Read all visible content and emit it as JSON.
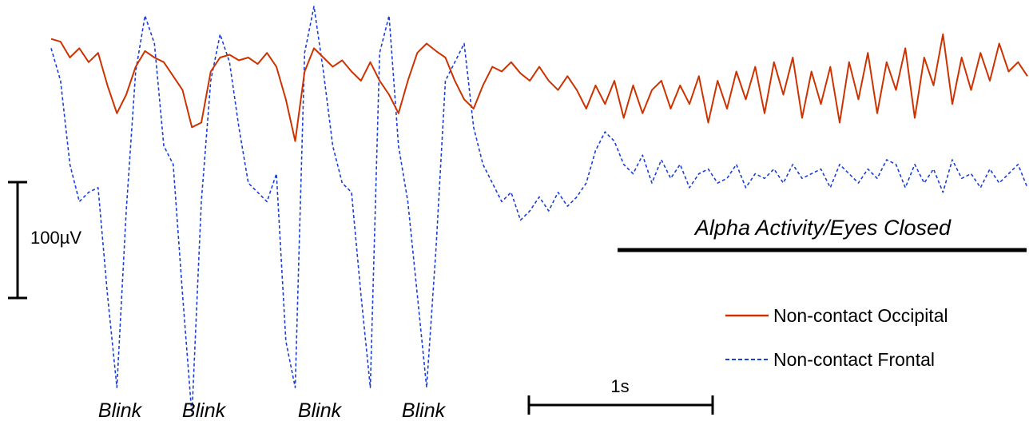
{
  "chart_data": {
    "type": "line",
    "title": "",
    "xlabel": "",
    "ylabel": "",
    "x_unit": "s",
    "y_unit": "µV",
    "xlim": [
      0,
      5.2
    ],
    "ylim": [
      -330,
      110
    ],
    "grid": false,
    "legend_position": "right",
    "scale_bars": {
      "voltage": {
        "label": "100µV",
        "value": 100
      },
      "time": {
        "label": "1s",
        "value": 1
      }
    },
    "annotations": {
      "blinks": [
        {
          "label": "Blink",
          "t": 0.35
        },
        {
          "label": "Blink",
          "t": 0.78
        },
        {
          "label": "Blink",
          "t": 1.38
        },
        {
          "label": "Blink",
          "t": 1.9
        }
      ],
      "alpha": {
        "label": "Alpha Activity/Eyes Closed",
        "t_start": 3.1,
        "t_end": 5.2
      }
    },
    "series": [
      {
        "name": "Non-contact Occipital",
        "color": "#cc3300",
        "style": "solid",
        "t": [
          0.0,
          0.05,
          0.1,
          0.15,
          0.2,
          0.25,
          0.3,
          0.35,
          0.4,
          0.45,
          0.5,
          0.55,
          0.6,
          0.65,
          0.7,
          0.75,
          0.8,
          0.85,
          0.9,
          0.95,
          1.0,
          1.05,
          1.1,
          1.15,
          1.2,
          1.25,
          1.3,
          1.35,
          1.4,
          1.45,
          1.5,
          1.55,
          1.6,
          1.65,
          1.7,
          1.75,
          1.8,
          1.85,
          1.9,
          1.95,
          2.0,
          2.05,
          2.1,
          2.15,
          2.2,
          2.25,
          2.3,
          2.35,
          2.4,
          2.45,
          2.5,
          2.55,
          2.6,
          2.65,
          2.7,
          2.75,
          2.8,
          2.85,
          2.9,
          2.95,
          3.0,
          3.05,
          3.1,
          3.15,
          3.2,
          3.25,
          3.3,
          3.35,
          3.4,
          3.45,
          3.5,
          3.55,
          3.6,
          3.65,
          3.7,
          3.75,
          3.8,
          3.85,
          3.9,
          3.95,
          4.0,
          4.05,
          4.1,
          4.15,
          4.2,
          4.25,
          4.3,
          4.35,
          4.4,
          4.45,
          4.5,
          4.55,
          4.6,
          4.65,
          4.7,
          4.75,
          4.8,
          4.85,
          4.9,
          4.95,
          5.0,
          5.05,
          5.1,
          5.15,
          5.2
        ],
        "v": [
          75,
          72,
          55,
          65,
          50,
          60,
          25,
          -5,
          15,
          45,
          62,
          55,
          50,
          35,
          20,
          -20,
          -15,
          40,
          55,
          58,
          52,
          55,
          48,
          60,
          45,
          10,
          -35,
          40,
          65,
          55,
          45,
          52,
          40,
          30,
          50,
          30,
          15,
          -5,
          30,
          60,
          70,
          62,
          55,
          30,
          10,
          0,
          25,
          45,
          40,
          50,
          38,
          30,
          45,
          30,
          20,
          35,
          20,
          0,
          25,
          5,
          30,
          -10,
          25,
          -5,
          20,
          30,
          0,
          25,
          5,
          35,
          -15,
          30,
          0,
          40,
          10,
          45,
          -5,
          50,
          15,
          55,
          -10,
          40,
          5,
          45,
          -15,
          50,
          10,
          60,
          -5,
          50,
          20,
          65,
          -10,
          55,
          25,
          80,
          5,
          55,
          20,
          60,
          30,
          70,
          40,
          50,
          35
        ]
      },
      {
        "name": "Non-contact Frontal",
        "color": "#1a3fd6",
        "style": "dashed",
        "t": [
          0.0,
          0.05,
          0.1,
          0.15,
          0.2,
          0.25,
          0.3,
          0.35,
          0.4,
          0.45,
          0.5,
          0.55,
          0.6,
          0.65,
          0.7,
          0.75,
          0.8,
          0.85,
          0.9,
          0.95,
          1.0,
          1.05,
          1.1,
          1.15,
          1.2,
          1.25,
          1.3,
          1.35,
          1.4,
          1.45,
          1.5,
          1.55,
          1.6,
          1.65,
          1.7,
          1.75,
          1.8,
          1.85,
          1.9,
          1.95,
          2.0,
          2.05,
          2.1,
          2.15,
          2.2,
          2.25,
          2.3,
          2.35,
          2.4,
          2.45,
          2.5,
          2.55,
          2.6,
          2.65,
          2.7,
          2.75,
          2.8,
          2.85,
          2.9,
          2.95,
          3.0,
          3.05,
          3.1,
          3.15,
          3.2,
          3.25,
          3.3,
          3.35,
          3.4,
          3.45,
          3.5,
          3.55,
          3.6,
          3.65,
          3.7,
          3.75,
          3.8,
          3.85,
          3.9,
          3.95,
          4.0,
          4.05,
          4.1,
          4.15,
          4.2,
          4.25,
          4.3,
          4.35,
          4.4,
          4.45,
          4.5,
          4.55,
          4.6,
          4.65,
          4.7,
          4.75,
          4.8,
          4.85,
          4.9,
          4.95,
          5.0,
          5.05,
          5.1,
          5.15,
          5.2
        ],
        "v": [
          65,
          30,
          -60,
          -100,
          -90,
          -85,
          -200,
          -300,
          -110,
          40,
          100,
          70,
          -40,
          -60,
          -200,
          -330,
          -100,
          30,
          80,
          50,
          -20,
          -80,
          -90,
          -100,
          -70,
          -250,
          -300,
          60,
          110,
          40,
          -40,
          -80,
          -90,
          -200,
          -300,
          60,
          100,
          -40,
          -100,
          -200,
          -300,
          -150,
          30,
          50,
          70,
          -20,
          -60,
          -80,
          -100,
          -90,
          -120,
          -110,
          -95,
          -110,
          -90,
          -105,
          -95,
          -80,
          -45,
          -25,
          -35,
          -60,
          -70,
          -50,
          -80,
          -55,
          -75,
          -60,
          -85,
          -70,
          -65,
          -80,
          -75,
          -60,
          -85,
          -70,
          -75,
          -65,
          -80,
          -60,
          -75,
          -70,
          -65,
          -85,
          -60,
          -70,
          -80,
          -65,
          -75,
          -55,
          -60,
          -85,
          -60,
          -80,
          -65,
          -90,
          -55,
          -75,
          -70,
          -85,
          -65,
          -80,
          -70,
          -60,
          -85
        ]
      }
    ]
  }
}
